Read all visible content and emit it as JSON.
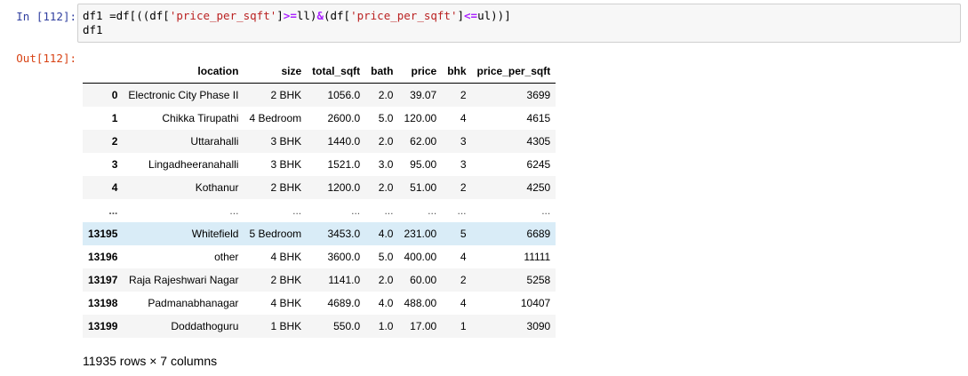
{
  "cell": {
    "in_prompt": "In [112]:",
    "out_prompt": "Out[112]:",
    "code": {
      "l1_a": "df1 =df[((df[",
      "l1_s1": "'price_per_sqft'",
      "l1_b": "]",
      "l1_op1": ">=",
      "l1_c": "ll)",
      "l1_op2": "&",
      "l1_d": "(df[",
      "l1_s2": "'price_per_sqft'",
      "l1_e": "]",
      "l1_op3": "<=",
      "l1_f": "ul))]",
      "line2": "df1"
    }
  },
  "table": {
    "columns": [
      "",
      "location",
      "size",
      "total_sqft",
      "bath",
      "price",
      "bhk",
      "price_per_sqft"
    ],
    "rows": [
      [
        "0",
        "Electronic City Phase II",
        "2 BHK",
        "1056.0",
        "2.0",
        "39.07",
        "2",
        "3699"
      ],
      [
        "1",
        "Chikka Tirupathi",
        "4 Bedroom",
        "2600.0",
        "5.0",
        "120.00",
        "4",
        "4615"
      ],
      [
        "2",
        "Uttarahalli",
        "3 BHK",
        "1440.0",
        "2.0",
        "62.00",
        "3",
        "4305"
      ],
      [
        "3",
        "Lingadheeranahalli",
        "3 BHK",
        "1521.0",
        "3.0",
        "95.00",
        "3",
        "6245"
      ],
      [
        "4",
        "Kothanur",
        "2 BHK",
        "1200.0",
        "2.0",
        "51.00",
        "2",
        "4250"
      ],
      [
        "...",
        "...",
        "...",
        "...",
        "...",
        "...",
        "...",
        "..."
      ],
      [
        "13195",
        "Whitefield",
        "5 Bedroom",
        "3453.0",
        "4.0",
        "231.00",
        "5",
        "6689"
      ],
      [
        "13196",
        "other",
        "4 BHK",
        "3600.0",
        "5.0",
        "400.00",
        "4",
        "11111"
      ],
      [
        "13197",
        "Raja Rajeshwari Nagar",
        "2 BHK",
        "1141.0",
        "2.0",
        "60.00",
        "2",
        "5258"
      ],
      [
        "13198",
        "Padmanabhanagar",
        "4 BHK",
        "4689.0",
        "4.0",
        "488.00",
        "4",
        "10407"
      ],
      [
        "13199",
        "Doddathoguru",
        "1 BHK",
        "550.0",
        "1.0",
        "17.00",
        "1",
        "3090"
      ]
    ],
    "shape_text": "11935 rows × 7 columns"
  }
}
